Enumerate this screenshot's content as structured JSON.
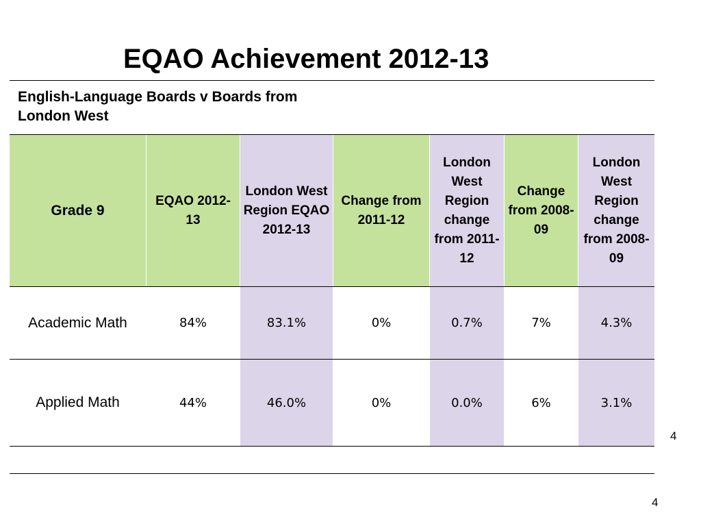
{
  "slide": {
    "title": "EQAO Achievement 2012-13",
    "subtitle": "English-Language Boards v Boards from London West"
  },
  "table": {
    "headers": [
      "Grade 9",
      "EQAO 2012-13",
      "London West Region EQAO 2012-13",
      "Change from 2011-12",
      "London West Region change from 2011-12",
      "Change from 2008-09",
      "London West Region change from 2008-09"
    ],
    "rows": [
      {
        "label": "Academic Math",
        "values": [
          "84%",
          "83.1%",
          "0%",
          "0.7%",
          "7%",
          "4.3%"
        ]
      },
      {
        "label": "Applied Math",
        "values": [
          "44%",
          "46.0%",
          "0%",
          "0.0%",
          "6%",
          "3.1%"
        ]
      }
    ]
  },
  "page_numbers": {
    "upper": "4",
    "lower": "4"
  },
  "colors": {
    "green_header": "#c4e29c",
    "lavender_column": "#dcd4e8"
  }
}
